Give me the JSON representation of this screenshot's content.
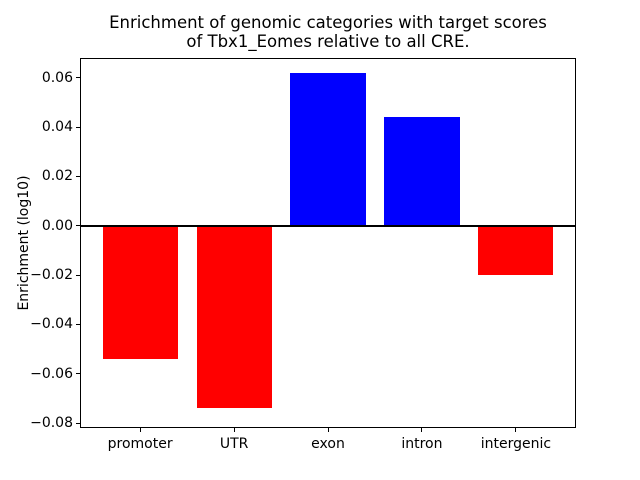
{
  "chart_data": {
    "type": "bar",
    "title": "Enrichment of genomic categories with target scores\nof Tbx1_Eomes relative to all CRE.",
    "xlabel": "",
    "ylabel": "Enrichment (log10)",
    "categories": [
      "promoter",
      "UTR",
      "exon",
      "intron",
      "intergenic"
    ],
    "values": [
      -0.054,
      -0.074,
      0.062,
      0.044,
      -0.02
    ],
    "bar_colors": [
      "#ff0000",
      "#ff0000",
      "#0000ff",
      "#0000ff",
      "#ff0000"
    ],
    "positive_color": "#0000ff",
    "negative_color": "#ff0000",
    "ylim": [
      -0.082,
      0.068
    ],
    "yticks": [
      -0.08,
      -0.06,
      -0.04,
      -0.02,
      0.0,
      0.02,
      0.04,
      0.06
    ],
    "ytick_labels": [
      "−0.08",
      "−0.06",
      "−0.04",
      "−0.02",
      "0.00",
      "0.02",
      "0.04",
      "0.06"
    ],
    "zero_line": true,
    "grid": false,
    "legend": "none",
    "background_color": "#ffffff",
    "axes_edge_color": "#000000",
    "text_color": "#000000"
  }
}
